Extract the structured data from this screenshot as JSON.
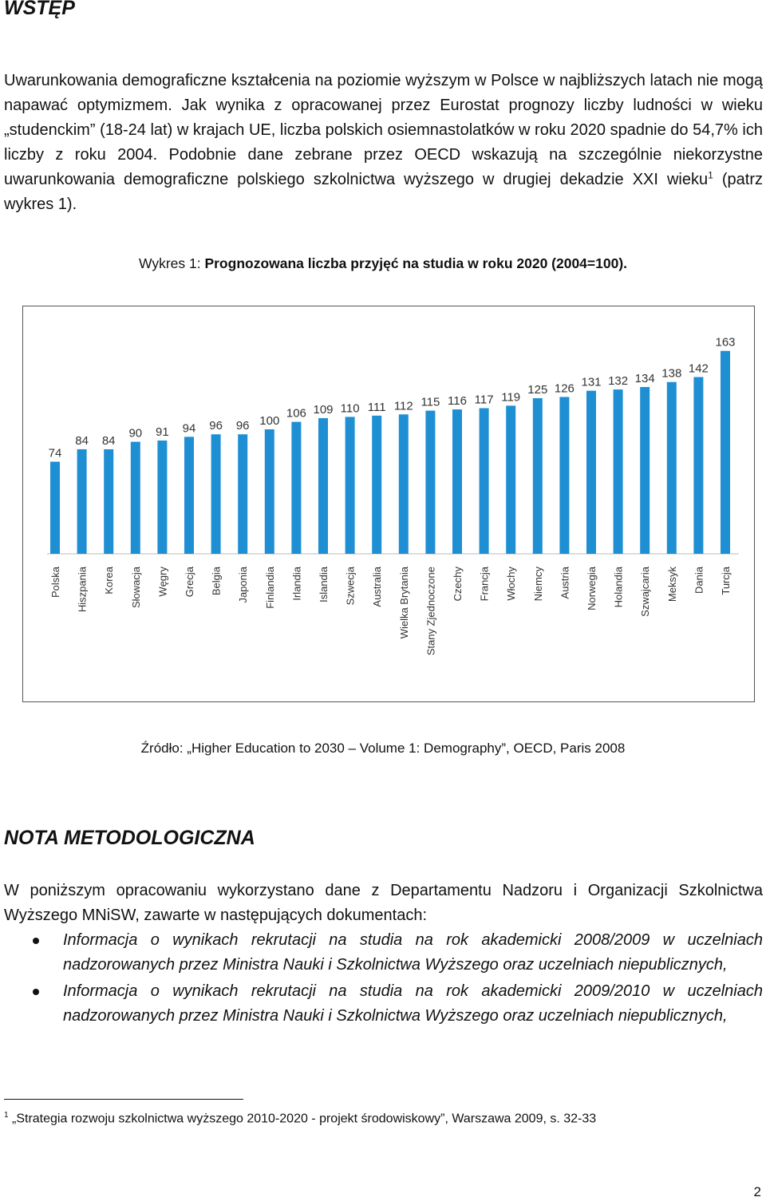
{
  "heading": "WSTĘP",
  "intro": {
    "before_note": "Uwarunkowania demograficzne kształcenia na poziomie wyższym w Polsce w najbliższych latach nie mogą napawać optymizmem. Jak wynika z opracowanej przez Eurostat prognozy liczby ludności w wieku „studenckim” (18-24 lat) w krajach UE, liczba polskich osiemnastolatków w roku 2020 spadnie do 54,7% ich liczby z roku 2004. Podobnie dane zebrane przez OECD wskazują na szczególnie niekorzystne uwarunkowania demograficzne polskiego szkolnictwa wyższego w drugiej dekadzie XXI wieku",
    "note_mark": "1",
    "after_note": " (patrz wykres 1)."
  },
  "figure": {
    "caption_prefix": "Wykres 1: ",
    "caption_title": "Prognozowana liczba przyjęć na studia w roku 2020 (2004=100)."
  },
  "chart_data": {
    "type": "bar",
    "categories": [
      "Polska",
      "Hiszpania",
      "Korea",
      "Słowacja",
      "Węgry",
      "Grecja",
      "Belgia",
      "Japonia",
      "Finlandia",
      "Irlandia",
      "Islandia",
      "Szwecja",
      "Australia",
      "Wielka Brytania",
      "Stany Zjednoczone",
      "Czechy",
      "Francja",
      "Włochy",
      "Niemcy",
      "Austria",
      "Norwegia",
      "Holandia",
      "Szwajcaria",
      "Meksyk",
      "Dania",
      "Turcja"
    ],
    "values": [
      74,
      84,
      84,
      90,
      91,
      94,
      96,
      96,
      100,
      106,
      109,
      110,
      111,
      112,
      115,
      116,
      117,
      119,
      125,
      126,
      131,
      132,
      134,
      138,
      142,
      163
    ],
    "ylim": [
      0,
      175
    ],
    "bar_color": "#1f8fd4",
    "grid": false,
    "legend": "none"
  },
  "source_text": "Źródło: „Higher Education to 2030 – Volume 1: Demography”, OECD, Paris 2008",
  "nota": {
    "heading": "NOTA METODOLOGICZNA",
    "text": "W poniższym opracowaniu wykorzystano dane z Departamentu Nadzoru i Organizacji Szkolnictwa Wyższego MNiSW, zawarte w następujących dokumentach:",
    "items": [
      "Informacja o wynikach rekrutacji na studia na rok akademicki 2008/2009 w uczelniach nadzorowanych przez Ministra Nauki i Szkolnictwa Wyższego oraz uczelniach niepublicznych,",
      "Informacja o wynikach rekrutacji na studia na rok akademicki 2009/2010 w uczelniach nadzorowanych przez Ministra Nauki i Szkolnictwa Wyższego oraz uczelniach niepublicznych,"
    ]
  },
  "footnote": {
    "mark": "1",
    "text": " „Strategia rozwoju szkolnictwa wyższego 2010-2020 - projekt środowiskowy”, Warszawa 2009, s. 32-33"
  },
  "page_number": "2"
}
